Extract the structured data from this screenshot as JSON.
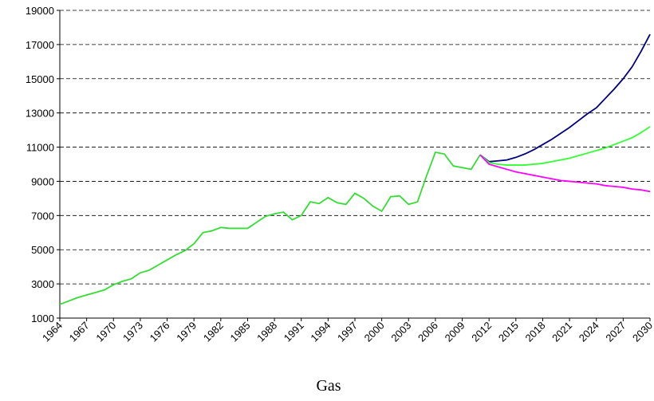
{
  "chart_data": {
    "type": "line",
    "title": "Gas",
    "x": [
      1964,
      1965,
      1966,
      1967,
      1968,
      1969,
      1970,
      1971,
      1972,
      1973,
      1974,
      1975,
      1976,
      1977,
      1978,
      1979,
      1980,
      1981,
      1982,
      1983,
      1984,
      1985,
      1986,
      1987,
      1988,
      1989,
      1990,
      1991,
      1992,
      1993,
      1994,
      1995,
      1996,
      1997,
      1998,
      1999,
      2000,
      2001,
      2002,
      2003,
      2004,
      2005,
      2006,
      2007,
      2008,
      2009,
      2010,
      2011,
      2012,
      2013,
      2014,
      2015,
      2016,
      2017,
      2018,
      2019,
      2020,
      2021,
      2022,
      2023,
      2024,
      2025,
      2026,
      2027,
      2028,
      2029,
      2030
    ],
    "xlim": [
      1964,
      2030
    ],
    "xticks": [
      1964,
      1967,
      1970,
      1973,
      1976,
      1979,
      1982,
      1985,
      1988,
      1991,
      1994,
      1997,
      2000,
      2003,
      2006,
      2009,
      2012,
      2015,
      2018,
      2021,
      2024,
      2027,
      2030
    ],
    "ylim": [
      1000,
      19000
    ],
    "yticks": [
      1000,
      3000,
      5000,
      7000,
      9000,
      11000,
      13000,
      15000,
      17000,
      19000
    ],
    "grid": true,
    "series": [
      {
        "color": "#33dd33",
        "values": [
          1800,
          2000,
          2200,
          2350,
          2500,
          2650,
          2950,
          3150,
          3300,
          3650,
          3800,
          4100,
          4400,
          4700,
          4950,
          5350,
          6000,
          6100,
          6300,
          6250,
          6250,
          6250,
          6600,
          6950,
          7100,
          7200,
          6750,
          7000,
          7800,
          7700,
          8050,
          7750,
          7650,
          8300,
          8000,
          7550,
          7250,
          8100,
          8150,
          7650,
          7800,
          9300,
          10700,
          10600,
          9900,
          9800,
          9700,
          10550,
          null,
          null,
          null,
          null,
          null,
          null,
          null,
          null,
          null,
          null,
          null,
          null,
          null,
          null,
          null,
          null,
          null,
          null,
          null
        ]
      },
      {
        "color": "#000080",
        "values": [
          null,
          null,
          null,
          null,
          null,
          null,
          null,
          null,
          null,
          null,
          null,
          null,
          null,
          null,
          null,
          null,
          null,
          null,
          null,
          null,
          null,
          null,
          null,
          null,
          null,
          null,
          null,
          null,
          null,
          null,
          null,
          null,
          null,
          null,
          null,
          null,
          null,
          null,
          null,
          null,
          null,
          null,
          null,
          null,
          null,
          null,
          null,
          10550,
          10150,
          10200,
          10250,
          10400,
          10600,
          10850,
          11150,
          11450,
          11800,
          12150,
          12550,
          12950,
          13300,
          13850,
          14400,
          15000,
          15700,
          16600,
          17600
        ]
      },
      {
        "color": "#33ff33",
        "values": [
          null,
          null,
          null,
          null,
          null,
          null,
          null,
          null,
          null,
          null,
          null,
          null,
          null,
          null,
          null,
          null,
          null,
          null,
          null,
          null,
          null,
          null,
          null,
          null,
          null,
          null,
          null,
          null,
          null,
          null,
          null,
          null,
          null,
          null,
          null,
          null,
          null,
          null,
          null,
          null,
          null,
          null,
          null,
          null,
          null,
          null,
          null,
          10550,
          10100,
          10000,
          9950,
          9950,
          9950,
          10000,
          10050,
          10150,
          10250,
          10350,
          10500,
          10650,
          10800,
          10950,
          11150,
          11350,
          11550,
          11850,
          12200
        ]
      },
      {
        "color": "#ff00ff",
        "values": [
          null,
          null,
          null,
          null,
          null,
          null,
          null,
          null,
          null,
          null,
          null,
          null,
          null,
          null,
          null,
          null,
          null,
          null,
          null,
          null,
          null,
          null,
          null,
          null,
          null,
          null,
          null,
          null,
          null,
          null,
          null,
          null,
          null,
          null,
          null,
          null,
          null,
          null,
          null,
          null,
          null,
          null,
          null,
          null,
          null,
          null,
          null,
          10550,
          10000,
          9850,
          9700,
          9550,
          9450,
          9350,
          9250,
          9150,
          9050,
          9000,
          8950,
          8900,
          8850,
          8750,
          8700,
          8650,
          8550,
          8500,
          8400
        ]
      }
    ]
  }
}
